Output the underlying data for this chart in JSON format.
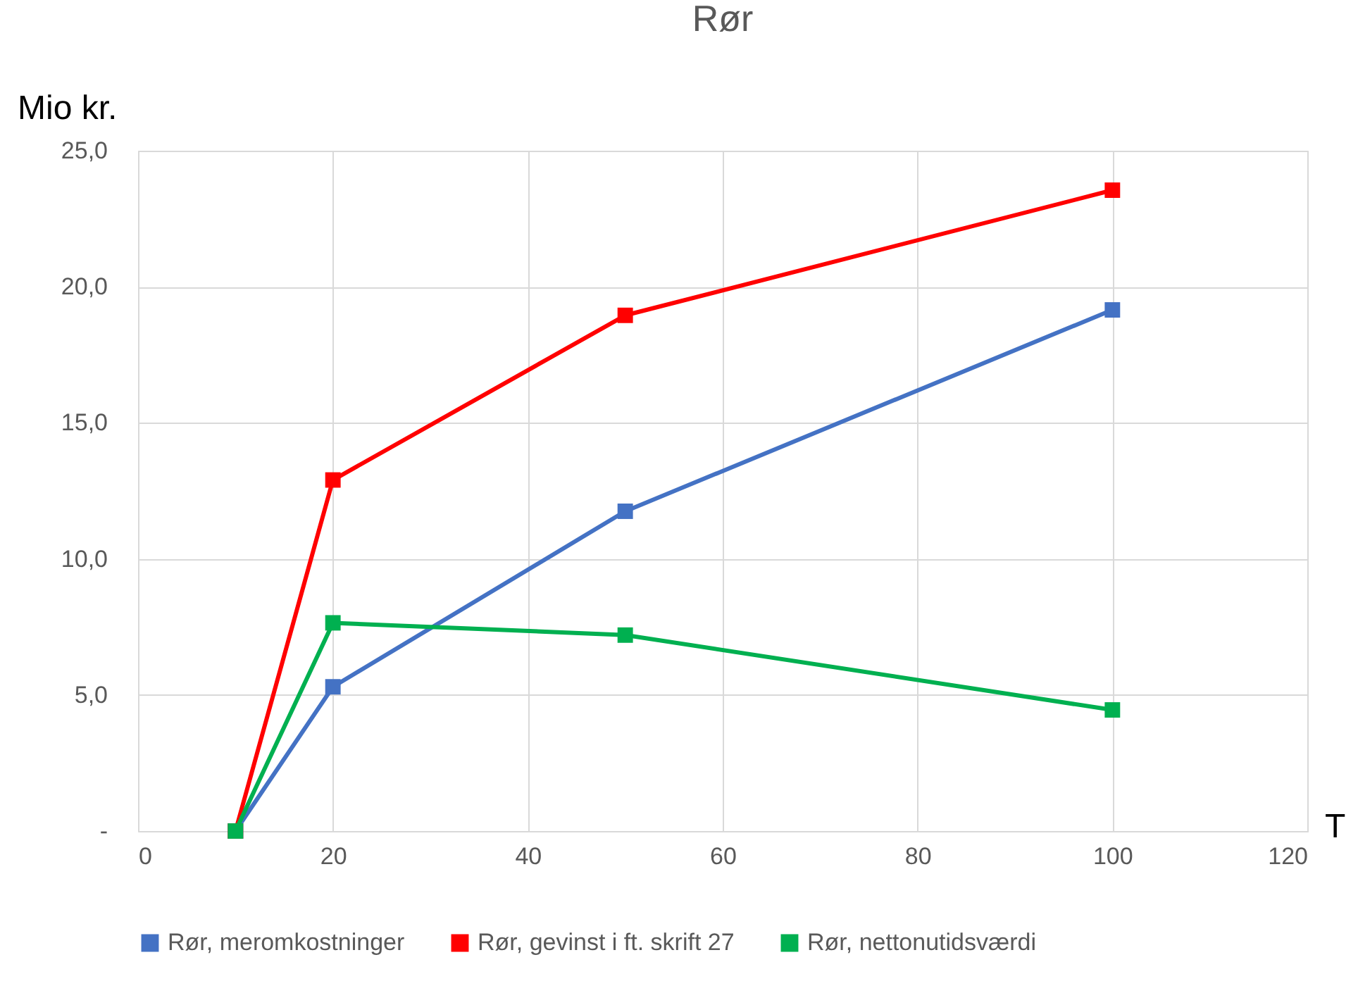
{
  "chart_data": {
    "type": "line",
    "title": "Rør",
    "ylabel": "Mio kr.",
    "xlabel": "T",
    "x": [
      10,
      20,
      50,
      100
    ],
    "series": [
      {
        "name": "Rør, meromkostninger",
        "color": "#4472c4",
        "values": [
          0,
          5.3,
          11.75,
          19.15
        ]
      },
      {
        "name": "Rør, gevinst i ft. skrift 27",
        "color": "#ff0000",
        "values": [
          0,
          12.9,
          18.95,
          23.55
        ]
      },
      {
        "name": "Rør, nettonutidsværdi",
        "color": "#00b050",
        "values": [
          0,
          7.65,
          7.2,
          4.45
        ]
      }
    ],
    "xlim": [
      0,
      120
    ],
    "xticks": [
      0,
      20,
      40,
      60,
      80,
      100,
      120
    ],
    "ylim": [
      0,
      25
    ],
    "yticks": [
      {
        "value": 0,
        "label": "-"
      },
      {
        "value": 5,
        "label": "5,0"
      },
      {
        "value": 10,
        "label": "10,0"
      },
      {
        "value": 15,
        "label": "15,0"
      },
      {
        "value": 20,
        "label": "20,0"
      },
      {
        "value": 25,
        "label": "25,0"
      }
    ],
    "grid": true,
    "legend": "bottom",
    "marker": "square",
    "line_style": "solid"
  }
}
